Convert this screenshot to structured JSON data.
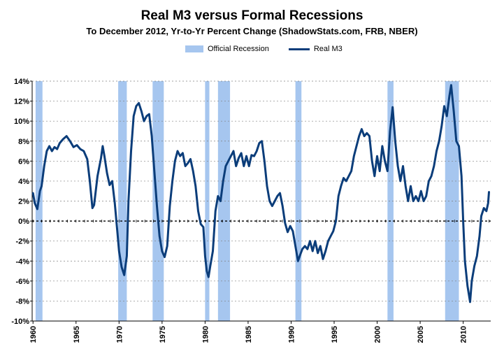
{
  "chart_data": {
    "type": "line",
    "title": "Real M3 versus Formal Recessions",
    "subtitle": "To December 2012, Yr-to-Yr  Percent Change (ShadowStats.com, FRB, NBER)",
    "legend": {
      "placement": "top-center",
      "items": [
        {
          "name": "Official Recession",
          "kind": "bar"
        },
        {
          "name": "Real M3",
          "kind": "line"
        }
      ]
    },
    "y_ticks": [
      -10,
      -8,
      -6,
      -4,
      -2,
      0,
      2,
      4,
      6,
      8,
      10,
      12,
      14
    ],
    "y_tick_labels": [
      "-10%",
      "-8%",
      "-6%",
      "-4%",
      "-2%",
      "0%",
      "2%",
      "4%",
      "6%",
      "8%",
      "10%",
      "12%",
      "14%"
    ],
    "ylim": [
      -10,
      14
    ],
    "x_ticks": [
      1960,
      1965,
      1970,
      1975,
      1980,
      1985,
      1990,
      1995,
      2000,
      2005,
      2010
    ],
    "x_tick_labels": [
      "1960",
      "1965",
      "1970",
      "1975",
      "1980",
      "1985",
      "1990",
      "1995",
      "2000",
      "2005",
      "2010"
    ],
    "xlim": [
      1959.9,
      2013.2
    ],
    "grid": "horizontal",
    "colors": {
      "recession": "#a6c6ef",
      "line": "#0b3d7a",
      "grid": "#808080",
      "zero_line": "#000000"
    },
    "recessions": [
      [
        1960.3,
        1961.1
      ],
      [
        1969.9,
        1970.9
      ],
      [
        1973.9,
        1975.2
      ],
      [
        1980.0,
        1980.5
      ],
      [
        1981.5,
        1982.9
      ],
      [
        1990.5,
        1991.2
      ],
      [
        2001.2,
        2001.9
      ],
      [
        2007.9,
        2009.5
      ]
    ],
    "series": [
      {
        "name": "Real M3",
        "points": [
          [
            1960.0,
            2.8
          ],
          [
            1960.2,
            1.8
          ],
          [
            1960.5,
            1.2
          ],
          [
            1960.8,
            3.0
          ],
          [
            1961.0,
            3.5
          ],
          [
            1961.3,
            5.5
          ],
          [
            1961.6,
            7.0
          ],
          [
            1961.9,
            7.5
          ],
          [
            1962.2,
            7.0
          ],
          [
            1962.5,
            7.4
          ],
          [
            1962.8,
            7.2
          ],
          [
            1963.1,
            7.8
          ],
          [
            1963.5,
            8.2
          ],
          [
            1963.9,
            8.5
          ],
          [
            1964.3,
            8.0
          ],
          [
            1964.7,
            7.4
          ],
          [
            1965.1,
            7.6
          ],
          [
            1965.5,
            7.2
          ],
          [
            1965.9,
            7.0
          ],
          [
            1966.3,
            6.2
          ],
          [
            1966.6,
            4.0
          ],
          [
            1966.9,
            1.3
          ],
          [
            1967.1,
            1.6
          ],
          [
            1967.5,
            4.5
          ],
          [
            1967.9,
            6.3
          ],
          [
            1968.1,
            7.5
          ],
          [
            1968.3,
            6.5
          ],
          [
            1968.6,
            4.8
          ],
          [
            1968.9,
            3.6
          ],
          [
            1969.2,
            4.0
          ],
          [
            1969.5,
            1.8
          ],
          [
            1969.8,
            -1.0
          ],
          [
            1970.0,
            -3.0
          ],
          [
            1970.3,
            -4.6
          ],
          [
            1970.6,
            -5.4
          ],
          [
            1970.9,
            -3.5
          ],
          [
            1971.1,
            2.0
          ],
          [
            1971.4,
            7.0
          ],
          [
            1971.7,
            10.5
          ],
          [
            1972.0,
            11.5
          ],
          [
            1972.3,
            11.8
          ],
          [
            1972.6,
            11.0
          ],
          [
            1972.9,
            10.0
          ],
          [
            1973.2,
            10.5
          ],
          [
            1973.5,
            10.7
          ],
          [
            1973.8,
            8.5
          ],
          [
            1974.1,
            5.0
          ],
          [
            1974.4,
            1.5
          ],
          [
            1974.7,
            -1.5
          ],
          [
            1975.0,
            -3.0
          ],
          [
            1975.3,
            -3.6
          ],
          [
            1975.6,
            -2.5
          ],
          [
            1975.9,
            1.5
          ],
          [
            1976.2,
            4.0
          ],
          [
            1976.5,
            6.0
          ],
          [
            1976.8,
            7.0
          ],
          [
            1977.1,
            6.5
          ],
          [
            1977.4,
            6.8
          ],
          [
            1977.7,
            5.5
          ],
          [
            1978.0,
            5.8
          ],
          [
            1978.3,
            6.2
          ],
          [
            1978.6,
            5.0
          ],
          [
            1978.9,
            3.5
          ],
          [
            1979.2,
            1.0
          ],
          [
            1979.5,
            -0.3
          ],
          [
            1979.8,
            -0.6
          ],
          [
            1980.0,
            -3.5
          ],
          [
            1980.2,
            -5.0
          ],
          [
            1980.4,
            -5.6
          ],
          [
            1980.6,
            -4.5
          ],
          [
            1980.9,
            -3.0
          ],
          [
            1981.2,
            1.0
          ],
          [
            1981.5,
            2.5
          ],
          [
            1981.8,
            2.0
          ],
          [
            1982.1,
            4.0
          ],
          [
            1982.4,
            5.5
          ],
          [
            1982.7,
            6.0
          ],
          [
            1983.0,
            6.5
          ],
          [
            1983.3,
            7.0
          ],
          [
            1983.6,
            5.5
          ],
          [
            1983.9,
            6.3
          ],
          [
            1984.2,
            6.8
          ],
          [
            1984.5,
            5.5
          ],
          [
            1984.8,
            6.5
          ],
          [
            1985.1,
            5.5
          ],
          [
            1985.4,
            6.6
          ],
          [
            1985.7,
            6.5
          ],
          [
            1986.0,
            7.0
          ],
          [
            1986.3,
            7.8
          ],
          [
            1986.6,
            8.0
          ],
          [
            1986.9,
            6.0
          ],
          [
            1987.2,
            3.5
          ],
          [
            1987.5,
            2.0
          ],
          [
            1987.8,
            1.5
          ],
          [
            1988.1,
            2.0
          ],
          [
            1988.4,
            2.5
          ],
          [
            1988.7,
            2.8
          ],
          [
            1989.0,
            1.5
          ],
          [
            1989.3,
            -0.2
          ],
          [
            1989.6,
            -1.1
          ],
          [
            1989.9,
            -0.5
          ],
          [
            1990.2,
            -1.0
          ],
          [
            1990.5,
            -2.5
          ],
          [
            1990.8,
            -4.0
          ],
          [
            1991.0,
            -3.5
          ],
          [
            1991.3,
            -2.8
          ],
          [
            1991.6,
            -2.5
          ],
          [
            1991.9,
            -2.8
          ],
          [
            1992.2,
            -2.0
          ],
          [
            1992.5,
            -3.0
          ],
          [
            1992.8,
            -2.0
          ],
          [
            1993.1,
            -3.2
          ],
          [
            1993.4,
            -2.5
          ],
          [
            1993.7,
            -3.8
          ],
          [
            1994.0,
            -3.0
          ],
          [
            1994.3,
            -2.0
          ],
          [
            1994.6,
            -1.5
          ],
          [
            1994.9,
            -1.0
          ],
          [
            1995.2,
            0.0
          ],
          [
            1995.5,
            2.5
          ],
          [
            1995.8,
            3.5
          ],
          [
            1996.1,
            4.3
          ],
          [
            1996.4,
            4.0
          ],
          [
            1996.7,
            4.5
          ],
          [
            1997.0,
            5.0
          ],
          [
            1997.3,
            6.5
          ],
          [
            1997.6,
            7.5
          ],
          [
            1997.9,
            8.5
          ],
          [
            1998.2,
            9.2
          ],
          [
            1998.5,
            8.5
          ],
          [
            1998.8,
            8.8
          ],
          [
            1999.1,
            8.5
          ],
          [
            1999.4,
            6.0
          ],
          [
            1999.7,
            4.5
          ],
          [
            2000.0,
            6.5
          ],
          [
            2000.3,
            5.0
          ],
          [
            2000.6,
            7.5
          ],
          [
            2000.9,
            6.0
          ],
          [
            2001.2,
            5.0
          ],
          [
            2001.5,
            9.0
          ],
          [
            2001.8,
            11.4
          ],
          [
            2002.1,
            8.0
          ],
          [
            2002.4,
            5.5
          ],
          [
            2002.7,
            4.0
          ],
          [
            2003.0,
            5.5
          ],
          [
            2003.3,
            3.5
          ],
          [
            2003.6,
            2.0
          ],
          [
            2003.9,
            3.5
          ],
          [
            2004.2,
            2.0
          ],
          [
            2004.5,
            2.5
          ],
          [
            2004.8,
            2.0
          ],
          [
            2005.1,
            3.0
          ],
          [
            2005.4,
            2.0
          ],
          [
            2005.7,
            2.5
          ],
          [
            2006.0,
            4.0
          ],
          [
            2006.3,
            4.5
          ],
          [
            2006.6,
            5.5
          ],
          [
            2006.9,
            7.0
          ],
          [
            2007.2,
            8.0
          ],
          [
            2007.5,
            9.5
          ],
          [
            2007.8,
            11.5
          ],
          [
            2008.1,
            10.5
          ],
          [
            2008.4,
            12.5
          ],
          [
            2008.6,
            13.6
          ],
          [
            2008.9,
            11.0
          ],
          [
            2009.2,
            8.0
          ],
          [
            2009.5,
            7.5
          ],
          [
            2009.8,
            4.5
          ],
          [
            2010.0,
            0.0
          ],
          [
            2010.2,
            -4.0
          ],
          [
            2010.5,
            -6.5
          ],
          [
            2010.8,
            -8.1
          ],
          [
            2011.0,
            -6.0
          ],
          [
            2011.3,
            -4.5
          ],
          [
            2011.6,
            -3.5
          ],
          [
            2011.9,
            -1.5
          ],
          [
            2012.1,
            0.5
          ],
          [
            2012.4,
            1.3
          ],
          [
            2012.7,
            1.0
          ],
          [
            2012.9,
            1.8
          ],
          [
            2013.0,
            2.9
          ]
        ]
      }
    ]
  }
}
